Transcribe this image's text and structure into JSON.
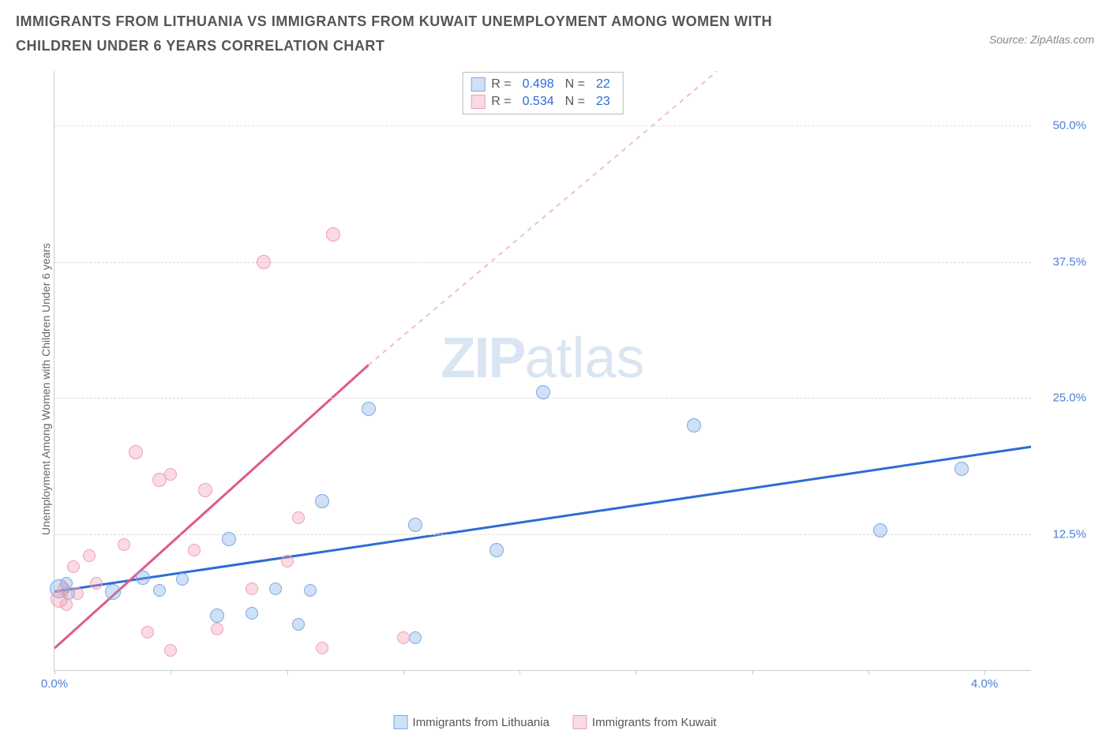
{
  "title": "IMMIGRANTS FROM LITHUANIA VS IMMIGRANTS FROM KUWAIT UNEMPLOYMENT AMONG WOMEN WITH CHILDREN UNDER 6 YEARS CORRELATION CHART",
  "source": "Source: ZipAtlas.com",
  "y_axis_label": "Unemployment Among Women with Children Under 6 years",
  "watermark_zip": "ZIP",
  "watermark_atlas": "atlas",
  "chart": {
    "type": "scatter",
    "xlim": [
      0,
      4.2
    ],
    "ylim": [
      0,
      55
    ],
    "x_ticks": [
      0,
      0.5,
      1.0,
      1.5,
      2.0,
      2.5,
      3.0,
      3.5,
      4.0
    ],
    "x_tick_labels": {
      "0": "0.0%",
      "4.0": "4.0%"
    },
    "y_ticks": [
      12.5,
      25.0,
      37.5,
      50.0
    ],
    "y_tick_labels": [
      "12.5%",
      "25.0%",
      "37.5%",
      "50.0%"
    ],
    "grid_color": "#dddddd",
    "background_color": "#ffffff",
    "series": [
      {
        "name": "Immigrants from Lithuania",
        "color_fill": "rgba(120, 165, 230, 0.35)",
        "color_stroke": "#7da9e0",
        "line_color": "#2e6bd6",
        "R": "0.498",
        "N": "22",
        "trend": {
          "x1": 0,
          "y1": 7.2,
          "x2": 4.2,
          "y2": 20.5,
          "dashed": false
        },
        "points": [
          {
            "x": 0.02,
            "y": 7.5,
            "r": 12
          },
          {
            "x": 0.05,
            "y": 8.0,
            "r": 8
          },
          {
            "x": 0.06,
            "y": 7.0,
            "r": 8
          },
          {
            "x": 0.25,
            "y": 7.2,
            "r": 10
          },
          {
            "x": 0.38,
            "y": 8.5,
            "r": 9
          },
          {
            "x": 0.45,
            "y": 7.3,
            "r": 8
          },
          {
            "x": 0.55,
            "y": 8.3,
            "r": 8
          },
          {
            "x": 0.7,
            "y": 5.0,
            "r": 9
          },
          {
            "x": 0.75,
            "y": 12.0,
            "r": 9
          },
          {
            "x": 0.85,
            "y": 5.2,
            "r": 8
          },
          {
            "x": 0.95,
            "y": 7.5,
            "r": 8
          },
          {
            "x": 1.05,
            "y": 4.2,
            "r": 8
          },
          {
            "x": 1.1,
            "y": 7.3,
            "r": 8
          },
          {
            "x": 1.15,
            "y": 15.5,
            "r": 9
          },
          {
            "x": 1.35,
            "y": 24.0,
            "r": 9
          },
          {
            "x": 1.55,
            "y": 13.3,
            "r": 9
          },
          {
            "x": 1.55,
            "y": 3.0,
            "r": 8
          },
          {
            "x": 1.9,
            "y": 11.0,
            "r": 9
          },
          {
            "x": 2.1,
            "y": 25.5,
            "r": 9
          },
          {
            "x": 2.75,
            "y": 22.5,
            "r": 9
          },
          {
            "x": 3.55,
            "y": 12.8,
            "r": 9
          },
          {
            "x": 3.9,
            "y": 18.5,
            "r": 9
          }
        ]
      },
      {
        "name": "Immigrants from Kuwait",
        "color_fill": "rgba(240, 150, 175, 0.35)",
        "color_stroke": "#f09fb3",
        "line_color": "#e05a86",
        "R": "0.534",
        "N": "23",
        "trend": {
          "x1": 0,
          "y1": 2.0,
          "x2": 1.35,
          "y2": 28.0,
          "dashed_from_x": 1.35,
          "dashed_to": {
            "x": 2.85,
            "y": 55
          }
        },
        "points": [
          {
            "x": 0.02,
            "y": 6.5,
            "r": 11
          },
          {
            "x": 0.04,
            "y": 7.5,
            "r": 8
          },
          {
            "x": 0.05,
            "y": 6.0,
            "r": 8
          },
          {
            "x": 0.08,
            "y": 9.5,
            "r": 8
          },
          {
            "x": 0.1,
            "y": 7.0,
            "r": 8
          },
          {
            "x": 0.15,
            "y": 10.5,
            "r": 8
          },
          {
            "x": 0.18,
            "y": 8.0,
            "r": 8
          },
          {
            "x": 0.3,
            "y": 11.5,
            "r": 8
          },
          {
            "x": 0.35,
            "y": 20.0,
            "r": 9
          },
          {
            "x": 0.4,
            "y": 3.5,
            "r": 8
          },
          {
            "x": 0.45,
            "y": 17.5,
            "r": 9
          },
          {
            "x": 0.5,
            "y": 18.0,
            "r": 8
          },
          {
            "x": 0.5,
            "y": 1.8,
            "r": 8
          },
          {
            "x": 0.6,
            "y": 11.0,
            "r": 8
          },
          {
            "x": 0.65,
            "y": 16.5,
            "r": 9
          },
          {
            "x": 0.7,
            "y": 3.8,
            "r": 8
          },
          {
            "x": 0.85,
            "y": 7.5,
            "r": 8
          },
          {
            "x": 0.9,
            "y": 37.5,
            "r": 9
          },
          {
            "x": 1.0,
            "y": 10.0,
            "r": 8
          },
          {
            "x": 1.05,
            "y": 14.0,
            "r": 8
          },
          {
            "x": 1.15,
            "y": 2.0,
            "r": 8
          },
          {
            "x": 1.2,
            "y": 40.0,
            "r": 9
          },
          {
            "x": 1.5,
            "y": 3.0,
            "r": 8
          }
        ]
      }
    ]
  },
  "legend_top_labels": {
    "R": "R =",
    "N": "N ="
  },
  "legend_bottom": [
    "Immigrants from Lithuania",
    "Immigrants from Kuwait"
  ]
}
